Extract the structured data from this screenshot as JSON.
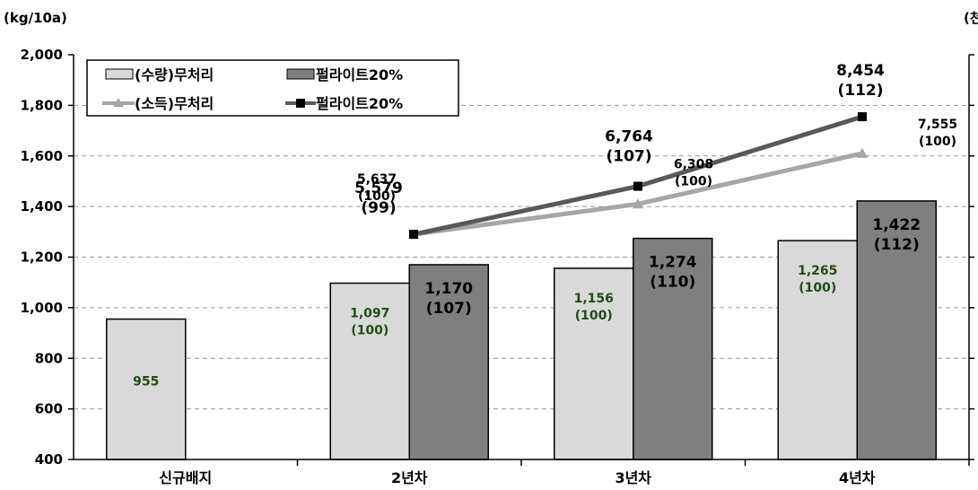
{
  "chart_data": {
    "type": "bar",
    "y_unit_left": "(kg/10a)",
    "y_unit_right": "(천",
    "categories": [
      "신규배지",
      "2년차",
      "3년차",
      "4년차"
    ],
    "ylim": [
      400,
      2000
    ],
    "yticks": [
      "2,000",
      "1,800",
      "1,600",
      "1,400",
      "1,200",
      "1,000",
      "800",
      "600",
      "400"
    ],
    "grid": "horizontal dashed",
    "legend_position": "top-left",
    "bar_series": [
      {
        "name": "(수량)무처리",
        "color": "#d9d9d9",
        "values": [
          955,
          1097,
          1156,
          1265
        ],
        "value_labels": [
          "955",
          "1,097",
          "1,156",
          "1,265"
        ],
        "index_labels": [
          "",
          "(100)",
          "(100)",
          "(100)"
        ],
        "label_color": "#1e4d12"
      },
      {
        "name": "펄라이트20%",
        "color": "#7f7f7f",
        "values": [
          null,
          1170,
          1274,
          1422
        ],
        "value_labels": [
          "",
          "1,170",
          "1,274",
          "1,422"
        ],
        "index_labels": [
          "",
          "(107)",
          "(110)",
          "(112)"
        ],
        "label_color": "#000000"
      }
    ],
    "line_series": [
      {
        "name": "(소득)무처리",
        "color": "#a6a6a6",
        "marker": "triangle",
        "y_left_equiv": [
          1290,
          1410,
          1610
        ],
        "value_labels": [
          "5,637",
          "6,308",
          "7,555"
        ],
        "index_labels": [
          "(100)",
          "(100)",
          "(100)"
        ]
      },
      {
        "name": "펄라이트20%",
        "color": "#595959",
        "marker": "square",
        "y_left_equiv": [
          1290,
          1480,
          1755
        ],
        "value_labels": [
          "5,579",
          "6,764",
          "8,454"
        ],
        "index_labels": [
          "(99)",
          "(107)",
          "(112)"
        ]
      }
    ]
  }
}
